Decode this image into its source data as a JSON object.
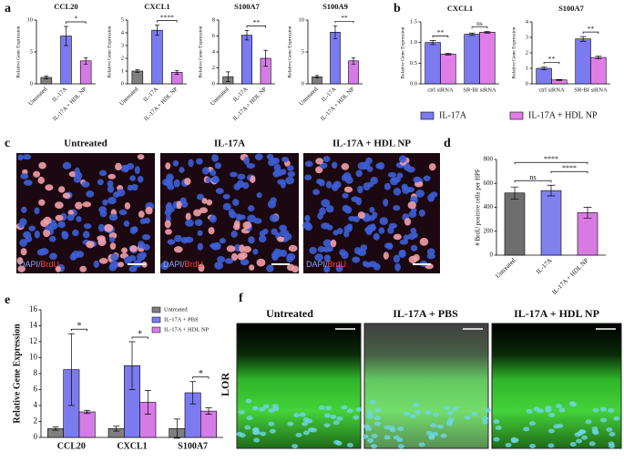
{
  "panel_labels": [
    "a",
    "b",
    "c",
    "d",
    "e",
    "f"
  ],
  "images": {
    "c": {
      "titles": [
        "Untreated",
        "IL-17A",
        "IL-17A + HDL NP"
      ],
      "stain": [
        "DAPI/",
        "BrdU"
      ]
    },
    "f": {
      "titles": [
        "Untreated",
        "IL-17A + PBS",
        "IL-17A + HDL NP"
      ],
      "marker": "LOR"
    }
  },
  "chart_data": [
    {
      "type": "bar",
      "title": "CCL20",
      "ylabel": "Relative Gene Expression",
      "categories": [
        "Untreated",
        "IL-17A",
        "IL-17A + HDL NP"
      ],
      "values": [
        1,
        7.5,
        3.6
      ],
      "errors": [
        0.2,
        1.5,
        0.5
      ],
      "colors": [
        "#7f7f7f",
        "#7b7bef",
        "#d57be6"
      ],
      "ylim": [
        0,
        10
      ],
      "yticks": [
        0,
        5,
        10
      ],
      "annotations": [
        "*"
      ]
    },
    {
      "type": "bar",
      "title": "CXCL1",
      "ylabel": "Relative Gene Expression",
      "categories": [
        "Untreated",
        "IL-17A",
        "IL-17A + HDL NP"
      ],
      "values": [
        1,
        4.2,
        0.9
      ],
      "errors": [
        0.1,
        0.4,
        0.15
      ],
      "colors": [
        "#7f7f7f",
        "#7b7bef",
        "#d57be6"
      ],
      "ylim": [
        0,
        5
      ],
      "yticks": [
        0,
        1,
        2,
        3,
        4,
        5
      ],
      "annotations": [
        "****"
      ]
    },
    {
      "type": "bar",
      "title": "S100A7",
      "ylabel": "Relative Gene Expression",
      "categories": [
        "Untreated",
        "IL-17A",
        "IL-17A + HDL NP"
      ],
      "values": [
        0.9,
        6.1,
        3.2
      ],
      "errors": [
        0.6,
        0.6,
        1.0
      ],
      "colors": [
        "#7f7f7f",
        "#7b7bef",
        "#d57be6"
      ],
      "ylim": [
        0,
        8
      ],
      "yticks": [
        0,
        2,
        4,
        6,
        8
      ],
      "annotations": [
        "**"
      ]
    },
    {
      "type": "bar",
      "title": "S100A9",
      "ylabel": "Relative Gene Expression",
      "categories": [
        "Untreated",
        "IL-17A",
        "IL-17A + HDL NP"
      ],
      "values": [
        1.1,
        8.1,
        3.6
      ],
      "errors": [
        0.2,
        1.0,
        0.5
      ],
      "colors": [
        "#7f7f7f",
        "#7b7bef",
        "#d57be6"
      ],
      "ylim": [
        0,
        10
      ],
      "yticks": [
        0,
        5,
        10
      ],
      "annotations": [
        "**"
      ]
    },
    {
      "type": "bar",
      "title": "CXCL1",
      "ylabel": "Relative Gene Expression",
      "categories": [
        "ctrl siRNA",
        "SR-BI siRNA"
      ],
      "series": [
        {
          "name": "IL-17A",
          "color": "#7b7bef",
          "values": [
            1.0,
            1.2
          ],
          "errors": [
            0.05,
            0.03
          ]
        },
        {
          "name": "IL-17A + HDL NP",
          "color": "#e07ee8",
          "values": [
            0.72,
            1.25
          ],
          "errors": [
            0.02,
            0.02
          ]
        }
      ],
      "ylim": [
        0,
        1.5
      ],
      "yticks": [
        {
          "value": 0,
          "label": "0.0"
        },
        {
          "value": 0.5,
          "label": "0.5"
        },
        {
          "value": 1,
          "label": "1.0"
        },
        {
          "value": 1.5,
          "label": "1.5"
        }
      ],
      "annotations": [
        "**",
        "ns"
      ],
      "legend": "below"
    },
    {
      "type": "bar",
      "title": "S100A7",
      "ylabel": "Relative Gene Expression",
      "categories": [
        "ctrl siRNA",
        "SR-BI siRNA"
      ],
      "series": [
        {
          "color": "#7b7bef",
          "values": [
            1.0,
            2.9
          ],
          "errors": [
            0.1,
            0.15
          ]
        },
        {
          "color": "#e07ee8",
          "values": [
            0.25,
            1.7
          ],
          "errors": [
            0.03,
            0.08
          ]
        }
      ],
      "ylim": [
        0,
        4
      ],
      "yticks": [
        0,
        1,
        2,
        3,
        4
      ],
      "annotations": [
        "**",
        "**"
      ]
    },
    {
      "type": "bar",
      "ylabel": "# BrdU positive cells per HPF",
      "categories": [
        "Untreated",
        "IL-17A",
        "IL-17A + HDL NP"
      ],
      "values": [
        520,
        540,
        355
      ],
      "errors": [
        50,
        45,
        45
      ],
      "colors": [
        "#6e6e6e",
        "#8080ee",
        "#d77be3"
      ],
      "ylim": [
        0,
        800
      ],
      "yticks": [
        0,
        200,
        400,
        600,
        800
      ],
      "annotations": [
        "ns",
        "****",
        "****"
      ]
    },
    {
      "type": "bar",
      "ylabel": "Relative Gene Expression",
      "categories": [
        "CCL20",
        "CXCL1",
        "S100A7"
      ],
      "series": [
        {
          "name": "Untreated",
          "color": "#7f7f7f",
          "values": [
            1.1,
            1.1,
            1.1
          ],
          "errors": [
            0.2,
            0.3,
            1.2
          ]
        },
        {
          "name": "IL-17A + PBS",
          "color": "#7b7bef",
          "values": [
            8.5,
            9.0,
            5.6
          ],
          "errors": [
            4.5,
            3.0,
            1.4
          ]
        },
        {
          "name": "IL-17A + HDL NP",
          "color": "#d57be6",
          "values": [
            3.2,
            4.4,
            3.3
          ],
          "errors": [
            0.2,
            1.5,
            0.4
          ]
        }
      ],
      "ylim": [
        0,
        16
      ],
      "yticks": [
        0,
        2,
        4,
        6,
        8,
        10,
        12,
        14,
        16
      ],
      "annotations": [
        "*",
        "*",
        "*"
      ],
      "legend": "upper right"
    }
  ]
}
